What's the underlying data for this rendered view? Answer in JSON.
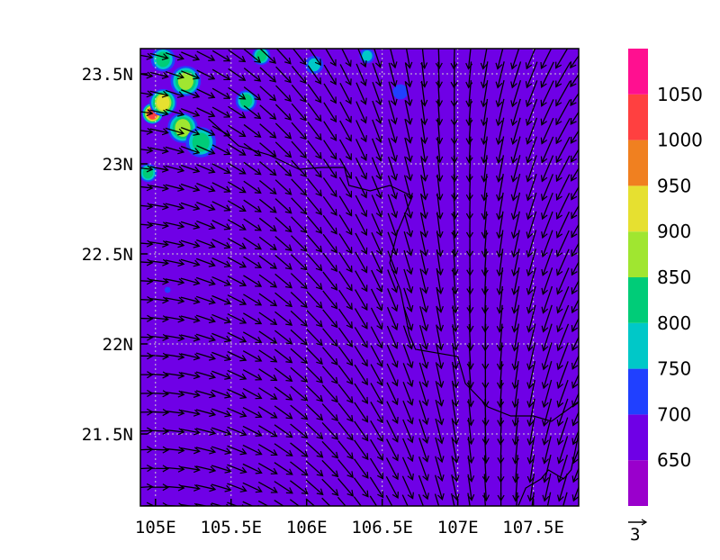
{
  "chart_data": {
    "type": "heatmap",
    "title": "",
    "xlabel": "",
    "ylabel": "",
    "x_axis": {
      "range": [
        104.9,
        107.8
      ],
      "ticks": [
        105,
        105.5,
        106,
        106.5,
        107,
        107.5
      ],
      "tick_labels": [
        "105E",
        "105.5E",
        "106E",
        "106.5E",
        "107E",
        "107.5E"
      ]
    },
    "y_axis": {
      "range": [
        21.1,
        23.64
      ],
      "ticks": [
        21.5,
        22,
        22.5,
        23,
        23.5
      ],
      "tick_labels": [
        "21.5N",
        "22N",
        "22.5N",
        "23N",
        "23.5N"
      ]
    },
    "grid": true,
    "colorbar": {
      "levels": [
        650,
        700,
        750,
        800,
        850,
        900,
        950,
        1000,
        1050
      ],
      "tick_labels": [
        "650",
        "700",
        "750",
        "800",
        "850",
        "900",
        "950",
        "1000",
        "1050"
      ],
      "colors": [
        "#9a00cc",
        "#6f00e6",
        "#2040ff",
        "#00c8c8",
        "#00cc78",
        "#a0e630",
        "#e6e030",
        "#f08020",
        "#ff4040",
        "#ff1090"
      ]
    },
    "background_value": 660,
    "blobs": [
      {
        "lon": 104.98,
        "lat": 23.28,
        "value": 1040,
        "r": 0.07
      },
      {
        "lon": 105.05,
        "lat": 23.34,
        "value": 930,
        "r": 0.09
      },
      {
        "lon": 105.18,
        "lat": 23.2,
        "value": 870,
        "r": 0.1
      },
      {
        "lon": 105.3,
        "lat": 23.12,
        "value": 820,
        "r": 0.1
      },
      {
        "lon": 105.2,
        "lat": 23.46,
        "value": 880,
        "r": 0.1
      },
      {
        "lon": 105.05,
        "lat": 23.58,
        "value": 820,
        "r": 0.08
      },
      {
        "lon": 105.6,
        "lat": 23.35,
        "value": 820,
        "r": 0.07
      },
      {
        "lon": 105.7,
        "lat": 23.6,
        "value": 800,
        "r": 0.06
      },
      {
        "lon": 106.05,
        "lat": 23.55,
        "value": 790,
        "r": 0.06
      },
      {
        "lon": 106.4,
        "lat": 23.6,
        "value": 780,
        "r": 0.05
      },
      {
        "lon": 106.62,
        "lat": 23.4,
        "value": 740,
        "r": 0.05
      },
      {
        "lon": 104.95,
        "lat": 22.95,
        "value": 800,
        "r": 0.06
      },
      {
        "lon": 105.08,
        "lat": 22.3,
        "value": 730,
        "r": 0.02
      }
    ],
    "wind_field": {
      "lon_range": [
        104.92,
        107.8
      ],
      "lat_range": [
        21.1,
        23.6
      ],
      "cols": 29,
      "rows": 25,
      "reference_vector_label": "3",
      "regime": "north flow in the west turning to north-east flow in the east"
    },
    "boundary": {
      "points": [
        [
          105.35,
          23.25
        ],
        [
          105.55,
          23.1
        ],
        [
          105.75,
          23.05
        ],
        [
          105.95,
          22.97
        ],
        [
          106.1,
          22.98
        ],
        [
          106.25,
          22.98
        ],
        [
          106.28,
          22.88
        ],
        [
          106.42,
          22.85
        ],
        [
          106.55,
          22.88
        ],
        [
          106.7,
          22.82
        ],
        [
          106.6,
          22.62
        ],
        [
          106.55,
          22.45
        ],
        [
          106.62,
          22.3
        ],
        [
          106.68,
          22.05
        ],
        [
          106.72,
          21.97
        ],
        [
          107.0,
          21.93
        ],
        [
          107.05,
          21.78
        ],
        [
          107.2,
          21.65
        ],
        [
          107.35,
          21.6
        ],
        [
          107.5,
          21.6
        ],
        [
          107.62,
          21.57
        ],
        [
          107.8,
          21.68
        ]
      ],
      "coast_points": [
        [
          107.8,
          21.5
        ],
        [
          107.75,
          21.3
        ],
        [
          107.7,
          21.25
        ],
        [
          107.6,
          21.3
        ],
        [
          107.55,
          21.25
        ],
        [
          107.45,
          21.2
        ],
        [
          107.4,
          21.1
        ]
      ]
    }
  }
}
